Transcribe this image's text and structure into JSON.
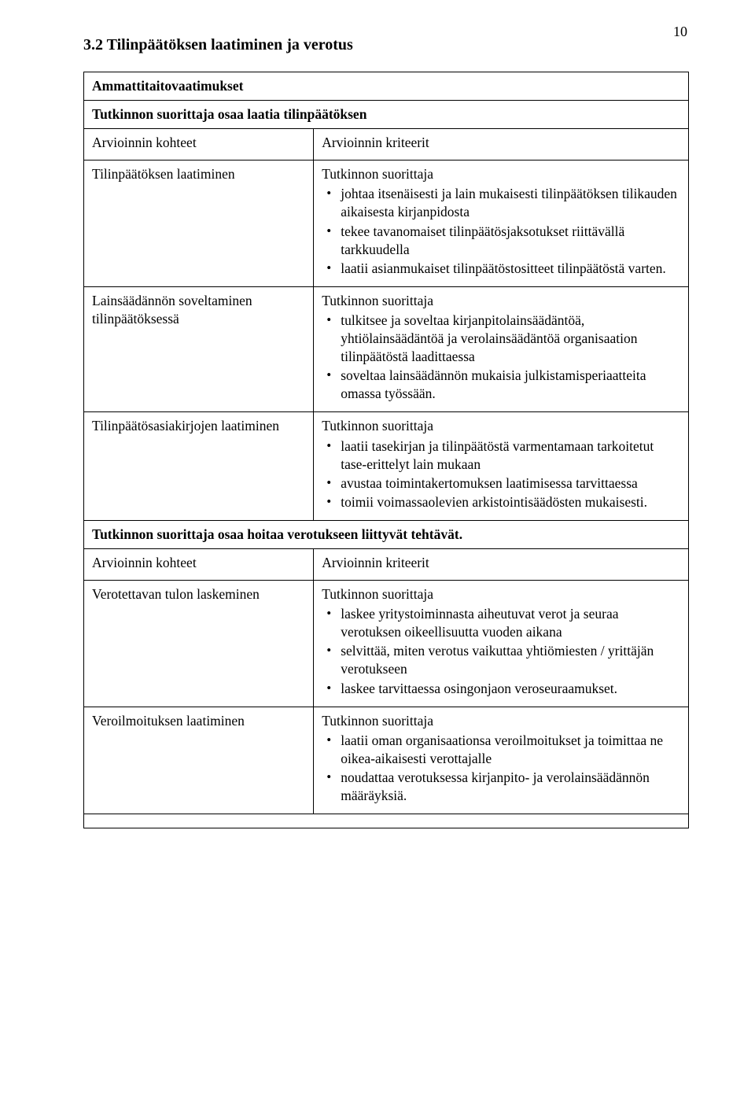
{
  "page_number": "10",
  "section_title": "3.2 Tilinpäätöksen laatiminen ja verotus",
  "table1": {
    "header_span": "Ammattitaitovaatimukset",
    "row_bold_span": "Tutkinnon suorittaja osaa laatia tilinpäätöksen",
    "col_left_header": "Arvioinnin kohteet",
    "col_right_header": "Arvioinnin kriteerit",
    "r1_left": "Tilinpäätöksen laatiminen",
    "r1_right_lead": "Tutkinnon suorittaja",
    "r1_b1": "johtaa itsenäisesti ja lain mukaisesti tilinpäätöksen tilikauden aikaisesta kirjanpidosta",
    "r1_b2": "tekee tavanomaiset tilinpäätösjaksotukset riittävällä tarkkuudella",
    "r1_b3": "laatii asianmukaiset tilinpäätöstositteet tilinpäätöstä varten.",
    "r2_left": "Lainsäädännön soveltaminen tilinpäätöksessä",
    "r2_right_lead": "Tutkinnon suorittaja",
    "r2_b1": "tulkitsee ja soveltaa kirjanpitolainsäädäntöä, yhtiölainsäädäntöä ja verolainsäädäntöä organisaation tilinpäätöstä laadittaessa",
    "r2_b2": "soveltaa lainsäädännön mukaisia julkistamisperiaatteita omassa työssään.",
    "r3_left": "Tilinpäätösasiakirjojen laatiminen",
    "r3_right_lead": "Tutkinnon suorittaja",
    "r3_b1": "laatii tasekirjan ja tilinpäätöstä varmentamaan tarkoitetut tase-erittelyt lain mukaan",
    "r3_b2": "avustaa toimintakertomuksen laatimisessa tarvittaessa",
    "r3_b3": "toimii voimassaolevien arkistointisäädösten mukaisesti.",
    "row2_bold_span": "Tutkinnon suorittaja osaa hoitaa verotukseen liittyvät tehtävät.",
    "col2_left_header": "Arvioinnin kohteet",
    "col2_right_header": "Arvioinnin kriteerit",
    "r4_left": "Verotettavan tulon laskeminen",
    "r4_right_lead": "Tutkinnon suorittaja",
    "r4_b1": "laskee yritystoiminnasta aiheutuvat verot ja seuraa verotuksen oikeellisuutta vuoden aikana",
    "r4_b2": "selvittää, miten verotus vaikuttaa yhtiömiesten / yrittäjän verotukseen",
    "r4_b3": "laskee tarvittaessa osingonjaon veroseuraamukset.",
    "r5_left": "Veroilmoituksen laatiminen",
    "r5_right_lead": "Tutkinnon suorittaja",
    "r5_b1": "laatii oman organisaationsa veroilmoitukset ja toimittaa ne oikea-aikaisesti verottajalle",
    "r5_b2": "noudattaa verotuksessa kirjanpito- ja verolainsäädännön määräyksiä."
  }
}
